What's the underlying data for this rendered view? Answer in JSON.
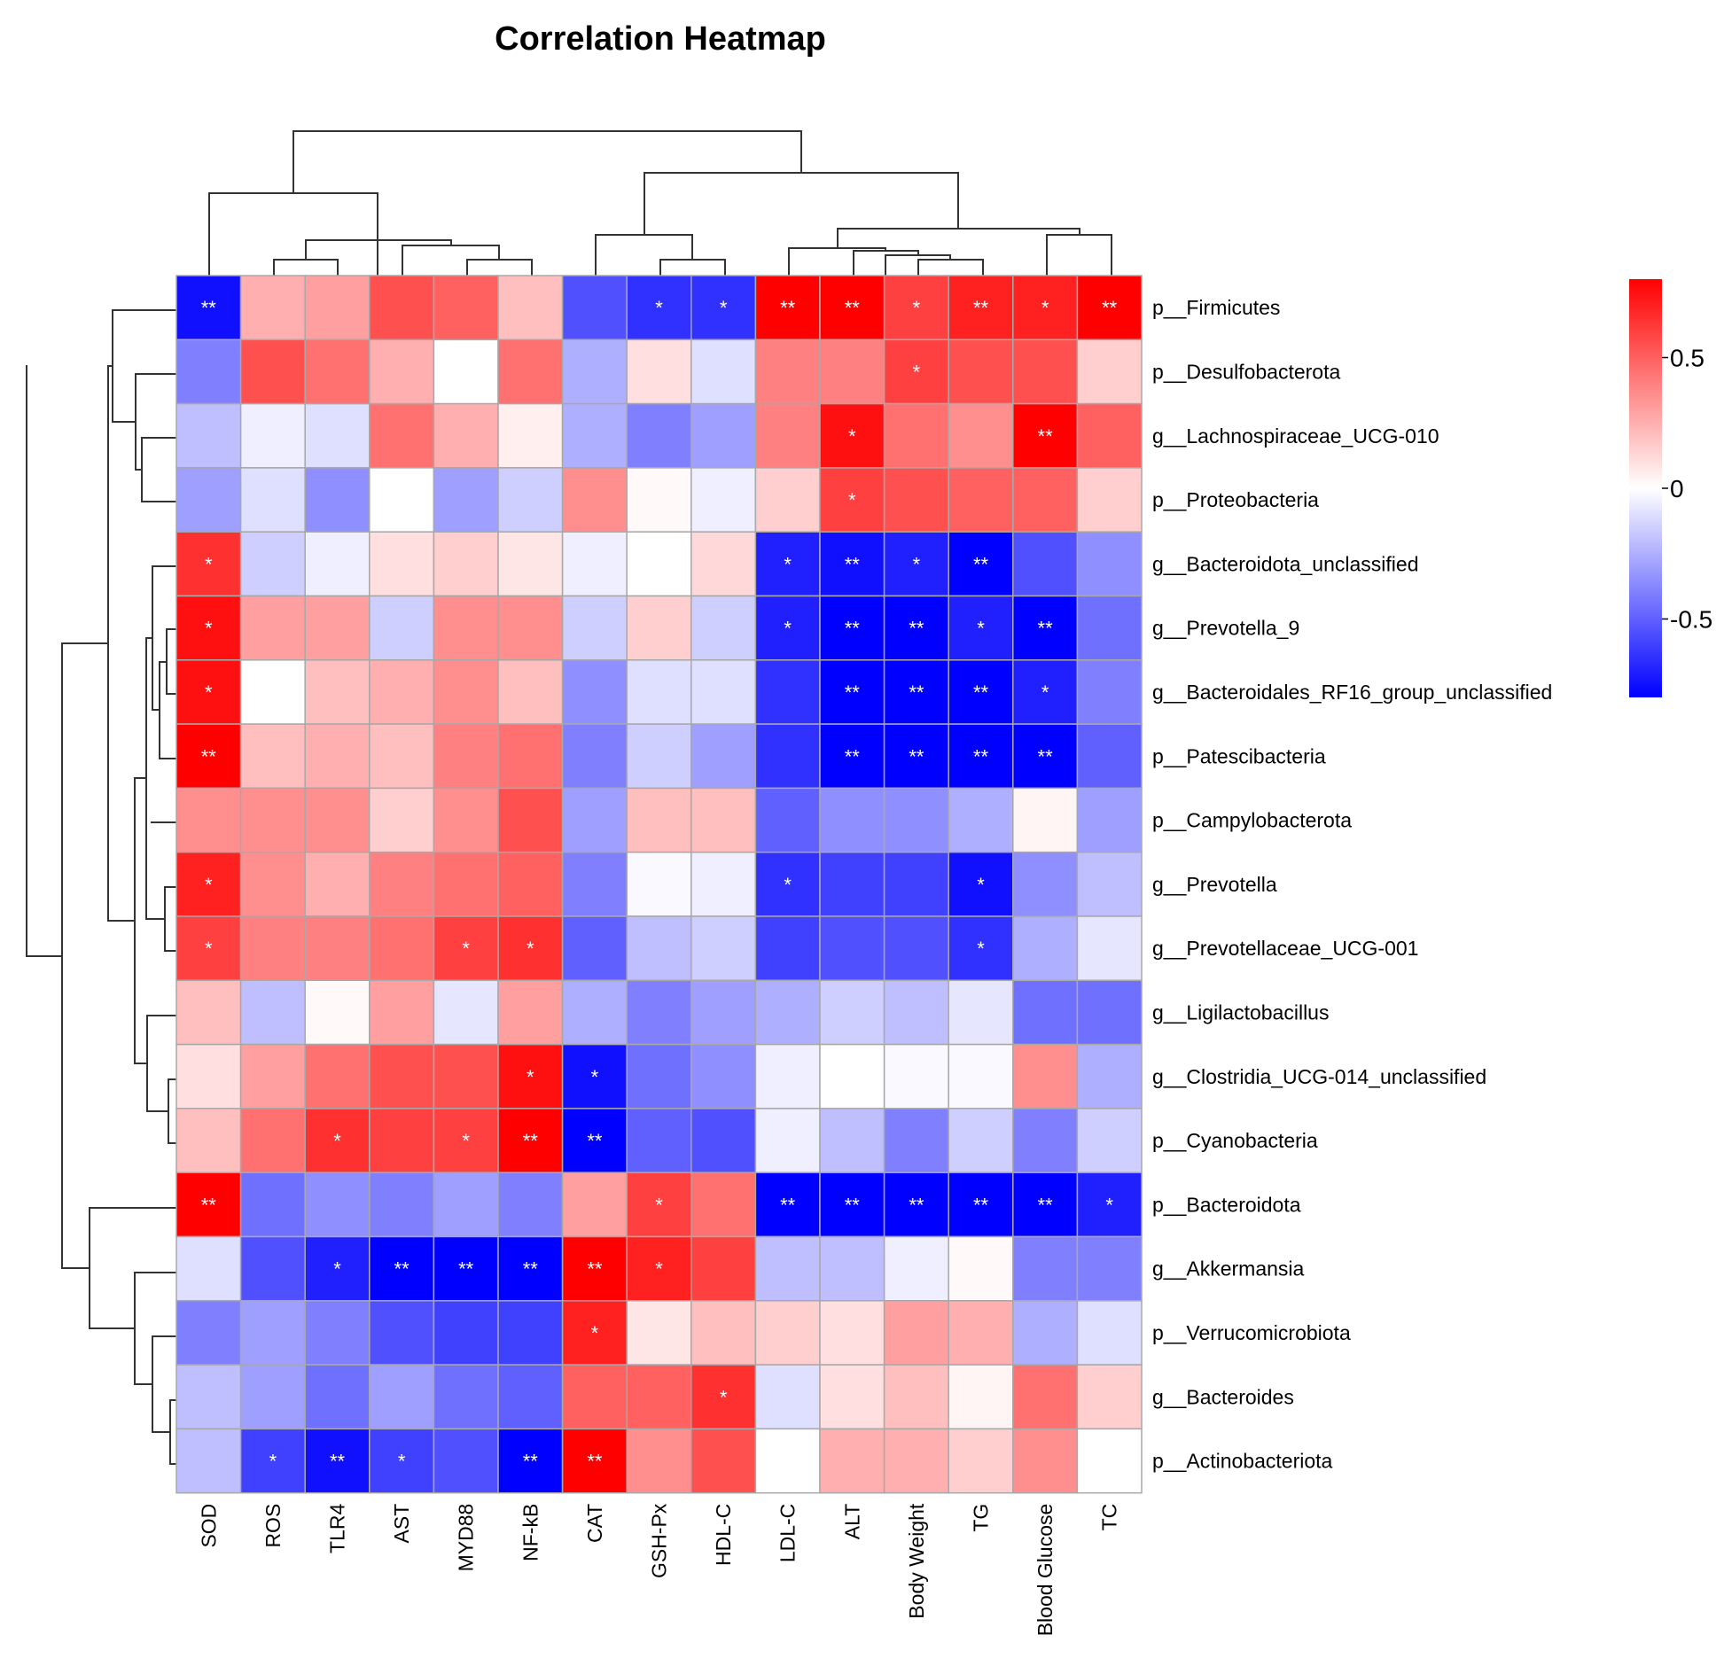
{
  "chart_data": {
    "type": "heatmap",
    "title": "Correlation Heatmap",
    "columns": [
      "SOD",
      "ROS",
      "TLR4",
      "AST",
      "MYD88",
      "NF-kB",
      "CAT",
      "GSH-Px",
      "HDL-C",
      "LDL-C",
      "ALT",
      "Body Weight",
      "TG",
      "Blood Glucose",
      "TC"
    ],
    "rows": [
      "p__Firmicutes",
      "p__Desulfobacterota",
      "g__Lachnospiraceae_UCG-010",
      "p__Proteobacteria",
      "g__Bacteroidota_unclassified",
      "g__Prevotella_9",
      "g__Bacteroidales_RF16_group_unclassified",
      "p__Patescibacteria",
      "p__Campylobacterota",
      "g__Prevotella",
      "g__Prevotellaceae_UCG-001",
      "g__Ligilactobacillus",
      "g__Clostridia_UCG-014_unclassified",
      "p__Cyanobacteria",
      "p__Bacteroidota",
      "g__Akkermansia",
      "p__Verrucomicrobiota",
      "g__Bacteroides",
      "p__Actinobacteriota"
    ],
    "values": [
      [
        -0.75,
        0.25,
        0.3,
        0.55,
        0.5,
        0.2,
        -0.55,
        -0.65,
        -0.65,
        0.85,
        0.85,
        0.6,
        0.7,
        0.7,
        0.8
      ],
      [
        -0.4,
        0.55,
        0.45,
        0.25,
        0.0,
        0.45,
        -0.25,
        0.1,
        -0.1,
        0.4,
        0.4,
        0.6,
        0.55,
        0.55,
        0.15
      ],
      [
        -0.2,
        -0.05,
        -0.1,
        0.45,
        0.25,
        0.05,
        -0.25,
        -0.4,
        -0.3,
        0.4,
        0.75,
        0.45,
        0.35,
        0.85,
        0.5
      ],
      [
        -0.3,
        -0.1,
        -0.35,
        0.0,
        -0.3,
        -0.15,
        0.35,
        0.02,
        -0.05,
        0.15,
        0.6,
        0.55,
        0.5,
        0.5,
        0.15
      ],
      [
        0.65,
        -0.15,
        -0.05,
        0.1,
        0.15,
        0.08,
        -0.05,
        0.0,
        0.12,
        -0.7,
        -0.75,
        -0.7,
        -0.8,
        -0.55,
        -0.35
      ],
      [
        0.75,
        0.3,
        0.3,
        -0.15,
        0.35,
        0.35,
        -0.15,
        0.15,
        -0.15,
        -0.7,
        -0.85,
        -0.8,
        -0.7,
        -0.8,
        -0.45
      ],
      [
        0.75,
        0.0,
        0.2,
        0.25,
        0.35,
        0.2,
        -0.35,
        -0.1,
        -0.1,
        -0.65,
        -0.85,
        -0.85,
        -0.85,
        -0.7,
        -0.4
      ],
      [
        0.85,
        0.2,
        0.25,
        0.2,
        0.4,
        0.45,
        -0.4,
        -0.15,
        -0.3,
        -0.65,
        -0.8,
        -0.8,
        -0.8,
        -0.8,
        -0.5
      ],
      [
        0.35,
        0.35,
        0.35,
        0.15,
        0.35,
        0.55,
        -0.3,
        0.2,
        0.2,
        -0.5,
        -0.35,
        -0.35,
        -0.25,
        0.03,
        -0.3
      ],
      [
        0.7,
        0.35,
        0.25,
        0.4,
        0.45,
        0.5,
        -0.4,
        -0.02,
        -0.05,
        -0.65,
        -0.6,
        -0.6,
        -0.75,
        -0.35,
        -0.2
      ],
      [
        0.6,
        0.4,
        0.4,
        0.45,
        0.6,
        0.65,
        -0.5,
        -0.2,
        -0.15,
        -0.6,
        -0.55,
        -0.55,
        -0.65,
        -0.25,
        -0.08
      ],
      [
        0.2,
        -0.2,
        0.02,
        0.3,
        -0.08,
        0.3,
        -0.25,
        -0.4,
        -0.3,
        -0.25,
        -0.15,
        -0.2,
        -0.08,
        -0.45,
        -0.45
      ],
      [
        0.1,
        0.3,
        0.45,
        0.55,
        0.55,
        0.75,
        -0.75,
        -0.45,
        -0.35,
        -0.05,
        0.0,
        -0.02,
        -0.02,
        0.35,
        -0.25
      ],
      [
        0.2,
        0.45,
        0.65,
        0.6,
        0.6,
        0.8,
        -0.9,
        -0.5,
        -0.55,
        -0.05,
        -0.2,
        -0.4,
        -0.15,
        -0.4,
        -0.15
      ],
      [
        0.85,
        -0.45,
        -0.35,
        -0.4,
        -0.3,
        -0.4,
        0.3,
        0.6,
        0.45,
        -0.9,
        -0.9,
        -0.9,
        -0.9,
        -0.85,
        -0.7
      ],
      [
        -0.1,
        -0.55,
        -0.7,
        -0.9,
        -0.85,
        -0.85,
        0.85,
        0.7,
        0.6,
        -0.2,
        -0.2,
        -0.05,
        0.02,
        -0.4,
        -0.4
      ],
      [
        -0.4,
        -0.3,
        -0.4,
        -0.55,
        -0.6,
        -0.6,
        0.7,
        0.08,
        0.2,
        0.15,
        0.1,
        0.3,
        0.25,
        -0.25,
        -0.1
      ],
      [
        -0.2,
        -0.3,
        -0.45,
        -0.3,
        -0.45,
        -0.5,
        0.5,
        0.5,
        0.65,
        -0.1,
        0.1,
        0.2,
        0.03,
        0.45,
        0.15
      ],
      [
        -0.2,
        -0.6,
        -0.75,
        -0.6,
        -0.55,
        -0.8,
        0.8,
        0.35,
        0.55,
        0.0,
        0.25,
        0.25,
        0.15,
        0.35,
        0.0
      ]
    ],
    "significance": [
      [
        "**",
        "",
        "",
        "",
        "",
        "",
        "",
        "*",
        "*",
        "**",
        "**",
        "*",
        "**",
        "*",
        "**"
      ],
      [
        "",
        "",
        "",
        "",
        "",
        "",
        "",
        "",
        "",
        "",
        "",
        "*",
        "",
        "",
        ""
      ],
      [
        "",
        "",
        "",
        "",
        "",
        "",
        "",
        "",
        "",
        "",
        "*",
        "",
        "",
        "**",
        ""
      ],
      [
        "",
        "",
        "",
        "",
        "",
        "",
        "",
        "",
        "",
        "",
        "*",
        "",
        "",
        "",
        ""
      ],
      [
        "*",
        "",
        "",
        "",
        "",
        "",
        "",
        "",
        "",
        "*",
        "**",
        "*",
        "**",
        "",
        ""
      ],
      [
        "*",
        "",
        "",
        "",
        "",
        "",
        "",
        "",
        "",
        "*",
        "**",
        "**",
        "*",
        "**",
        ""
      ],
      [
        "*",
        "",
        "",
        "",
        "",
        "",
        "",
        "",
        "",
        "",
        "**",
        "**",
        "**",
        "*",
        ""
      ],
      [
        "**",
        "",
        "",
        "",
        "",
        "",
        "",
        "",
        "",
        "",
        "**",
        "**",
        "**",
        "**",
        ""
      ],
      [
        "",
        "",
        "",
        "",
        "",
        "",
        "",
        "",
        "",
        "",
        "",
        "",
        "",
        "",
        ""
      ],
      [
        "*",
        "",
        "",
        "",
        "",
        "",
        "",
        "",
        "",
        "*",
        "",
        "",
        "*",
        "",
        ""
      ],
      [
        "*",
        "",
        "",
        "",
        "*",
        "*",
        "",
        "",
        "",
        "",
        "",
        "",
        "*",
        "",
        ""
      ],
      [
        "",
        "",
        "",
        "",
        "",
        "",
        "",
        "",
        "",
        "",
        "",
        "",
        "",
        "",
        ""
      ],
      [
        "",
        "",
        "",
        "",
        "",
        "*",
        "*",
        "",
        "",
        "",
        "",
        "",
        "",
        "",
        ""
      ],
      [
        "",
        "",
        "*",
        "",
        "*",
        "**",
        "**",
        "",
        "",
        "",
        "",
        "",
        "",
        "",
        ""
      ],
      [
        "**",
        "",
        "",
        "",
        "",
        "",
        "",
        "*",
        "",
        "**",
        "**",
        "**",
        "**",
        "**",
        "*"
      ],
      [
        "",
        "",
        "*",
        "**",
        "**",
        "**",
        "**",
        "*",
        "",
        "",
        "",
        "",
        "",
        "",
        ""
      ],
      [
        "",
        "",
        "",
        "",
        "",
        "",
        "*",
        "",
        "",
        "",
        "",
        "",
        "",
        "",
        ""
      ],
      [
        "",
        "",
        "",
        "",
        "",
        "",
        "",
        "",
        "*",
        "",
        "",
        "",
        "",
        "",
        ""
      ],
      [
        "",
        "*",
        "**",
        "*",
        "",
        "**",
        "**",
        "",
        "",
        "",
        "",
        "",
        "",
        "",
        ""
      ]
    ],
    "color_scale": {
      "min": -0.8,
      "mid": 0,
      "max": 0.8,
      "low_color": "#0000ff",
      "mid_color": "#ffffff",
      "high_color": "#ff0000"
    },
    "legend": {
      "ticks": [
        0.5,
        0,
        -0.5
      ],
      "tick_labels": [
        "0.5",
        "0",
        "-0.5"
      ],
      "placement": "right"
    },
    "col_dendrogram": true,
    "row_dendrogram": true
  }
}
